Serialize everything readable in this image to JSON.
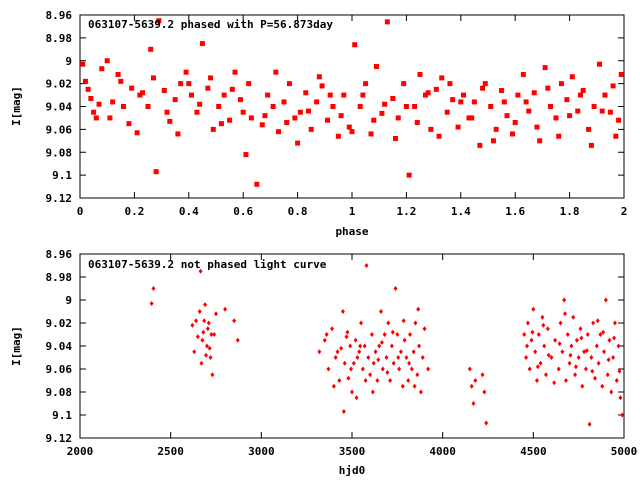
{
  "colors": {
    "points": "#ff0000",
    "axes": "#000000",
    "background": "#ffffff"
  },
  "chart_data": [
    {
      "type": "scatter",
      "title": "063107-5639.2 phased with P=56.873day",
      "xlabel": "phase",
      "ylabel": "I[mag]",
      "xlim": [
        0,
        2
      ],
      "ylim": [
        8.96,
        9.12
      ],
      "y_inverted": true,
      "grid": false,
      "marker": "filled-square",
      "x_ticks": [
        "0",
        "0.2",
        "0.4",
        "0.6",
        "0.8",
        "1",
        "1.2",
        "1.4",
        "1.6",
        "1.8",
        "2"
      ],
      "x_tick_values": [
        0,
        0.2,
        0.4,
        0.6,
        0.8,
        1.0,
        1.2,
        1.4,
        1.6,
        1.8,
        2.0
      ],
      "y_ticks": [
        "8.96",
        "8.98",
        "9",
        "9.02",
        "9.04",
        "9.06",
        "9.08",
        "9.1",
        "9.12"
      ],
      "y_tick_values": [
        8.96,
        8.98,
        9.0,
        9.02,
        9.04,
        9.06,
        9.08,
        9.1,
        9.12
      ],
      "points": [
        [
          0.01,
          9.003
        ],
        [
          0.02,
          9.018
        ],
        [
          0.04,
          9.033
        ],
        [
          0.05,
          9.045
        ],
        [
          0.06,
          9.05
        ],
        [
          0.08,
          9.007
        ],
        [
          0.1,
          9.0
        ],
        [
          0.12,
          9.036
        ],
        [
          0.14,
          9.012
        ],
        [
          0.16,
          9.04
        ],
        [
          0.19,
          9.024
        ],
        [
          0.21,
          9.063
        ],
        [
          0.23,
          9.028
        ],
        [
          0.25,
          9.04
        ],
        [
          0.27,
          9.015
        ],
        [
          0.29,
          8.965
        ],
        [
          0.31,
          9.026
        ],
        [
          0.33,
          9.053
        ],
        [
          0.35,
          9.034
        ],
        [
          0.37,
          9.02
        ],
        [
          0.39,
          9.01
        ],
        [
          0.41,
          9.03
        ],
        [
          0.43,
          9.045
        ],
        [
          0.45,
          8.985
        ],
        [
          0.47,
          9.024
        ],
        [
          0.49,
          9.06
        ],
        [
          0.51,
          9.04
        ],
        [
          0.53,
          9.03
        ],
        [
          0.55,
          9.052
        ],
        [
          0.57,
          9.01
        ],
        [
          0.59,
          9.034
        ],
        [
          0.61,
          9.082
        ],
        [
          0.63,
          9.05
        ],
        [
          0.65,
          9.108
        ],
        [
          0.67,
          9.056
        ],
        [
          0.69,
          9.03
        ],
        [
          0.71,
          9.04
        ],
        [
          0.73,
          9.062
        ],
        [
          0.75,
          9.036
        ],
        [
          0.77,
          9.02
        ],
        [
          0.79,
          9.05
        ],
        [
          0.81,
          9.045
        ],
        [
          0.83,
          9.028
        ],
        [
          0.85,
          9.06
        ],
        [
          0.87,
          9.036
        ],
        [
          0.89,
          9.022
        ],
        [
          0.91,
          9.052
        ],
        [
          0.93,
          9.04
        ],
        [
          0.95,
          9.066
        ],
        [
          0.97,
          9.03
        ],
        [
          0.99,
          9.058
        ],
        [
          1.01,
          8.986
        ],
        [
          1.03,
          9.04
        ],
        [
          1.05,
          9.02
        ],
        [
          1.07,
          9.064
        ],
        [
          1.09,
          9.005
        ],
        [
          1.11,
          9.046
        ],
        [
          1.13,
          8.966
        ],
        [
          1.15,
          9.033
        ],
        [
          1.17,
          9.05
        ],
        [
          1.19,
          9.02
        ],
        [
          1.21,
          9.1
        ],
        [
          1.23,
          9.04
        ],
        [
          1.25,
          9.012
        ],
        [
          1.27,
          9.03
        ],
        [
          1.29,
          9.06
        ],
        [
          1.31,
          9.025
        ],
        [
          1.33,
          9.015
        ],
        [
          1.35,
          9.045
        ],
        [
          1.37,
          9.034
        ],
        [
          1.39,
          9.058
        ],
        [
          1.41,
          9.03
        ],
        [
          1.43,
          9.05
        ],
        [
          1.45,
          9.036
        ],
        [
          1.47,
          9.074
        ],
        [
          1.49,
          9.02
        ],
        [
          1.51,
          9.04
        ],
        [
          1.53,
          9.06
        ],
        [
          1.55,
          9.026
        ],
        [
          1.57,
          9.048
        ],
        [
          1.59,
          9.064
        ],
        [
          1.61,
          9.03
        ],
        [
          1.63,
          9.012
        ],
        [
          1.65,
          9.044
        ],
        [
          1.67,
          9.028
        ],
        [
          1.69,
          9.07
        ],
        [
          1.71,
          9.006
        ],
        [
          1.73,
          9.04
        ],
        [
          1.75,
          9.05
        ],
        [
          1.77,
          9.02
        ],
        [
          1.79,
          9.034
        ],
        [
          1.81,
          9.014
        ],
        [
          1.83,
          9.044
        ],
        [
          1.85,
          9.026
        ],
        [
          1.87,
          9.06
        ],
        [
          1.89,
          9.04
        ],
        [
          1.91,
          9.003
        ],
        [
          1.93,
          9.03
        ],
        [
          1.95,
          9.045
        ],
        [
          1.97,
          9.066
        ],
        [
          1.99,
          9.012
        ],
        [
          0.03,
          9.025
        ],
        [
          0.07,
          9.038
        ],
        [
          0.11,
          9.05
        ],
        [
          0.15,
          9.018
        ],
        [
          0.18,
          9.055
        ],
        [
          0.22,
          9.03
        ],
        [
          0.26,
          8.99
        ],
        [
          0.28,
          9.097
        ],
        [
          0.32,
          9.045
        ],
        [
          0.36,
          9.064
        ],
        [
          0.4,
          9.02
        ],
        [
          0.44,
          9.038
        ],
        [
          0.48,
          9.015
        ],
        [
          0.52,
          9.055
        ],
        [
          0.56,
          9.025
        ],
        [
          0.6,
          9.045
        ],
        [
          0.62,
          9.02
        ],
        [
          0.68,
          9.048
        ],
        [
          0.72,
          9.01
        ],
        [
          0.76,
          9.054
        ],
        [
          0.8,
          9.072
        ],
        [
          0.84,
          9.044
        ],
        [
          0.88,
          9.014
        ],
        [
          0.92,
          9.03
        ],
        [
          0.96,
          9.048
        ],
        [
          1.0,
          9.062
        ],
        [
          1.04,
          9.03
        ],
        [
          1.08,
          9.052
        ],
        [
          1.12,
          9.038
        ],
        [
          1.16,
          9.068
        ],
        [
          1.2,
          9.04
        ],
        [
          1.24,
          9.054
        ],
        [
          1.28,
          9.028
        ],
        [
          1.32,
          9.066
        ],
        [
          1.36,
          9.02
        ],
        [
          1.4,
          9.036
        ],
        [
          1.44,
          9.05
        ],
        [
          1.48,
          9.024
        ],
        [
          1.52,
          9.07
        ],
        [
          1.56,
          9.036
        ],
        [
          1.6,
          9.054
        ],
        [
          1.64,
          9.036
        ],
        [
          1.68,
          9.058
        ],
        [
          1.72,
          9.024
        ],
        [
          1.76,
          9.066
        ],
        [
          1.8,
          9.048
        ],
        [
          1.84,
          9.03
        ],
        [
          1.88,
          9.074
        ],
        [
          1.92,
          9.044
        ],
        [
          1.96,
          9.022
        ],
        [
          1.98,
          9.052
        ]
      ]
    },
    {
      "type": "scatter",
      "title": "063107-5639.2 not phased light curve",
      "xlabel": "hjd0",
      "ylabel": "I[mag]",
      "xlim": [
        2000,
        5000
      ],
      "ylim": [
        8.96,
        9.12
      ],
      "y_inverted": true,
      "grid": false,
      "marker": "small-diamond",
      "x_ticks": [
        "2000",
        "2500",
        "3000",
        "3500",
        "4000",
        "4500",
        "5000"
      ],
      "x_tick_values": [
        2000,
        2500,
        3000,
        3500,
        4000,
        4500,
        5000
      ],
      "y_ticks": [
        "8.96",
        "8.98",
        "9",
        "9.02",
        "9.04",
        "9.06",
        "9.08",
        "9.1",
        "9.12"
      ],
      "y_tick_values": [
        8.96,
        8.98,
        9.0,
        9.02,
        9.04,
        9.06,
        9.08,
        9.1,
        9.12
      ],
      "points": [
        [
          2395,
          9.003
        ],
        [
          2405,
          8.99
        ],
        [
          2620,
          9.022
        ],
        [
          2630,
          9.045
        ],
        [
          2640,
          9.018
        ],
        [
          2650,
          9.032
        ],
        [
          2660,
          9.01
        ],
        [
          2670,
          9.055
        ],
        [
          2680,
          9.028
        ],
        [
          2690,
          9.004
        ],
        [
          2700,
          9.04
        ],
        [
          2710,
          9.02
        ],
        [
          2720,
          9.05
        ],
        [
          2730,
          9.065
        ],
        [
          2740,
          9.03
        ],
        [
          2750,
          9.012
        ],
        [
          2665,
          8.975
        ],
        [
          2675,
          9.035
        ],
        [
          2685,
          9.018
        ],
        [
          2695,
          9.048
        ],
        [
          2705,
          9.025
        ],
        [
          2715,
          9.042
        ],
        [
          2725,
          9.03
        ],
        [
          2800,
          9.008
        ],
        [
          2850,
          9.018
        ],
        [
          2870,
          9.035
        ],
        [
          3320,
          9.045
        ],
        [
          3350,
          9.035
        ],
        [
          3370,
          9.06
        ],
        [
          3390,
          9.025
        ],
        [
          3410,
          9.05
        ],
        [
          3430,
          9.07
        ],
        [
          3440,
          9.042
        ],
        [
          3450,
          9.01
        ],
        [
          3460,
          9.055
        ],
        [
          3470,
          9.032
        ],
        [
          3480,
          9.068
        ],
        [
          3490,
          9.04
        ],
        [
          3500,
          9.08
        ],
        [
          3510,
          9.055
        ],
        [
          3520,
          9.035
        ],
        [
          3530,
          9.05
        ],
        [
          3540,
          9.045
        ],
        [
          3550,
          9.02
        ],
        [
          3560,
          9.06
        ],
        [
          3570,
          9.04
        ],
        [
          3580,
          8.97
        ],
        [
          3590,
          9.05
        ],
        [
          3600,
          9.065
        ],
        [
          3610,
          9.03
        ],
        [
          3620,
          9.055
        ],
        [
          3630,
          9.045
        ],
        [
          3640,
          9.07
        ],
        [
          3650,
          9.04
        ],
        [
          3660,
          9.01
        ],
        [
          3670,
          9.06
        ],
        [
          3680,
          9.03
        ],
        [
          3690,
          9.05
        ],
        [
          3700,
          9.02
        ],
        [
          3710,
          9.07
        ],
        [
          3720,
          9.04
        ],
        [
          3730,
          9.055
        ],
        [
          3740,
          8.99
        ],
        [
          3750,
          9.03
        ],
        [
          3760,
          9.06
        ],
        [
          3770,
          9.045
        ],
        [
          3780,
          9.075
        ],
        [
          3790,
          9.035
        ],
        [
          3800,
          9.05
        ],
        [
          3810,
          9.07
        ],
        [
          3820,
          9.03
        ],
        [
          3830,
          9.06
        ],
        [
          3840,
          9.045
        ],
        [
          3850,
          9.02
        ],
        [
          3860,
          9.065
        ],
        [
          3870,
          9.04
        ],
        [
          3880,
          9.08
        ],
        [
          3890,
          9.05
        ],
        [
          3900,
          9.025
        ],
        [
          3920,
          9.06
        ],
        [
          3360,
          9.03
        ],
        [
          3400,
          9.075
        ],
        [
          3420,
          9.045
        ],
        [
          3455,
          9.097
        ],
        [
          3475,
          9.028
        ],
        [
          3495,
          9.06
        ],
        [
          3525,
          9.085
        ],
        [
          3545,
          9.04
        ],
        [
          3575,
          9.07
        ],
        [
          3615,
          9.08
        ],
        [
          3645,
          9.052
        ],
        [
          3665,
          9.037
        ],
        [
          3695,
          9.063
        ],
        [
          3725,
          9.028
        ],
        [
          3755,
          9.05
        ],
        [
          3785,
          9.018
        ],
        [
          3815,
          9.055
        ],
        [
          3845,
          9.075
        ],
        [
          3865,
          9.008
        ],
        [
          4150,
          9.06
        ],
        [
          4160,
          9.075
        ],
        [
          4170,
          9.09
        ],
        [
          4180,
          9.07
        ],
        [
          4220,
          9.065
        ],
        [
          4230,
          9.08
        ],
        [
          4240,
          9.107
        ],
        [
          4450,
          9.03
        ],
        [
          4460,
          9.05
        ],
        [
          4470,
          9.02
        ],
        [
          4480,
          9.06
        ],
        [
          4490,
          9.035
        ],
        [
          4500,
          9.008
        ],
        [
          4510,
          9.045
        ],
        [
          4520,
          9.07
        ],
        [
          4530,
          9.03
        ],
        [
          4540,
          9.055
        ],
        [
          4550,
          9.015
        ],
        [
          4560,
          9.04
        ],
        [
          4570,
          9.065
        ],
        [
          4580,
          9.025
        ],
        [
          4600,
          9.05
        ],
        [
          4620,
          9.035
        ],
        [
          4640,
          9.06
        ],
        [
          4650,
          9.02
        ],
        [
          4660,
          9.045
        ],
        [
          4670,
          9.0
        ],
        [
          4680,
          9.07
        ],
        [
          4690,
          9.03
        ],
        [
          4700,
          9.055
        ],
        [
          4710,
          9.04
        ],
        [
          4720,
          9.015
        ],
        [
          4730,
          9.065
        ],
        [
          4740,
          9.035
        ],
        [
          4750,
          9.05
        ],
        [
          4760,
          9.025
        ],
        [
          4770,
          9.075
        ],
        [
          4780,
          9.045
        ],
        [
          4790,
          9.06
        ],
        [
          4800,
          9.03
        ],
        [
          4810,
          9.108
        ],
        [
          4820,
          9.05
        ],
        [
          4830,
          9.02
        ],
        [
          4840,
          9.068
        ],
        [
          4850,
          9.04
        ],
        [
          4860,
          9.055
        ],
        [
          4870,
          9.03
        ],
        [
          4880,
          9.075
        ],
        [
          4890,
          9.045
        ],
        [
          4900,
          9.0
        ],
        [
          4910,
          9.065
        ],
        [
          4920,
          9.035
        ],
        [
          4930,
          9.08
        ],
        [
          4940,
          9.05
        ],
        [
          4950,
          9.02
        ],
        [
          4960,
          9.07
        ],
        [
          4970,
          9.04
        ],
        [
          4980,
          9.085
        ],
        [
          4990,
          9.1
        ],
        [
          4465,
          9.04
        ],
        [
          4495,
          9.028
        ],
        [
          4525,
          9.058
        ],
        [
          4555,
          9.022
        ],
        [
          4585,
          9.048
        ],
        [
          4615,
          9.072
        ],
        [
          4645,
          9.038
        ],
        [
          4675,
          9.012
        ],
        [
          4705,
          9.048
        ],
        [
          4735,
          9.058
        ],
        [
          4765,
          9.033
        ],
        [
          4795,
          9.044
        ],
        [
          4825,
          9.062
        ],
        [
          4855,
          9.018
        ],
        [
          4885,
          9.028
        ],
        [
          4915,
          9.052
        ],
        [
          4945,
          9.033
        ],
        [
          4975,
          9.062
        ]
      ]
    }
  ]
}
